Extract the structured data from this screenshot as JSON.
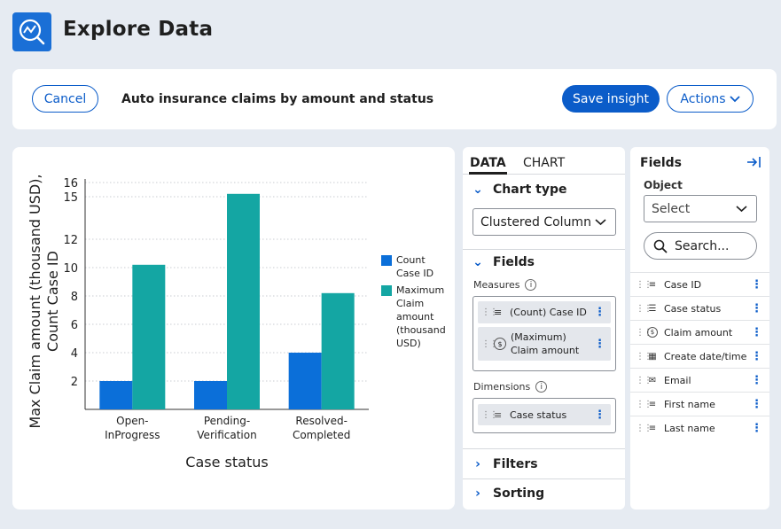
{
  "app": {
    "title": "Explore Data",
    "logo_icon": "chart-search-icon"
  },
  "toolbar": {
    "cancel_label": "Cancel",
    "insight_title": "Auto insurance claims by amount and status",
    "save_label": "Save insight",
    "actions_label": "Actions"
  },
  "chart_data": {
    "type": "bar",
    "categories": [
      "Open-InProgress",
      "Pending-Verification",
      "Resolved-Completed"
    ],
    "category_lines": [
      [
        "Open-",
        "InProgress"
      ],
      [
        "Pending-",
        "Verification"
      ],
      [
        "Resolved-",
        "Completed"
      ]
    ],
    "series": [
      {
        "name": "Count Case ID",
        "legend_lines": [
          "Count",
          "Case ID"
        ],
        "values": [
          2,
          2,
          4
        ],
        "color": "#0b6fd9"
      },
      {
        "name": "Maximum Claim amount (thousand USD)",
        "legend_lines": [
          "Maximum",
          "Claim",
          "amount",
          "(thousand",
          "USD)"
        ],
        "values": [
          10.2,
          15.2,
          8.2
        ],
        "color": "#14a6a3"
      }
    ],
    "title": "",
    "xlabel": "Case status",
    "ylabel_lines": [
      "Max Claim amount (thousand USD),",
      "Count Case ID"
    ],
    "yticks": [
      2,
      4,
      6,
      8,
      10,
      12,
      15,
      16
    ],
    "ylim": [
      0,
      16
    ],
    "grid": true,
    "legend_position": "right"
  },
  "data_panel": {
    "tabs": [
      "DATA",
      "CHART"
    ],
    "chart_type_heading": "Chart type",
    "chart_type_value": "Clustered Column",
    "fields_heading": "Fields",
    "measures_label": "Measures",
    "measures": [
      {
        "label": "(Count) Case ID",
        "icon": "text-lines-icon"
      },
      {
        "label_lines": [
          "(Maximum)",
          "Claim amount"
        ],
        "icon": "currency-icon"
      }
    ],
    "dimensions_label": "Dimensions",
    "dimensions": [
      {
        "label": "Case status",
        "icon": "list-icon"
      }
    ],
    "filters_heading": "Filters",
    "sorting_heading": "Sorting"
  },
  "fields_panel": {
    "title": "Fields",
    "collapse_icon": "collapse-right-icon",
    "object_label": "Object",
    "object_placeholder": "Select",
    "search_placeholder": "Search...",
    "fields": [
      {
        "label": "Case ID",
        "icon": "text-lines-icon"
      },
      {
        "label": "Case status",
        "icon": "list-icon"
      },
      {
        "label": "Claim amount",
        "icon": "currency-icon"
      },
      {
        "label": "Create date/time",
        "icon": "calendar-icon"
      },
      {
        "label": "Email",
        "icon": "mail-icon"
      },
      {
        "label": "First name",
        "icon": "text-lines-icon"
      },
      {
        "label": "Last name",
        "icon": "text-lines-icon"
      }
    ]
  }
}
